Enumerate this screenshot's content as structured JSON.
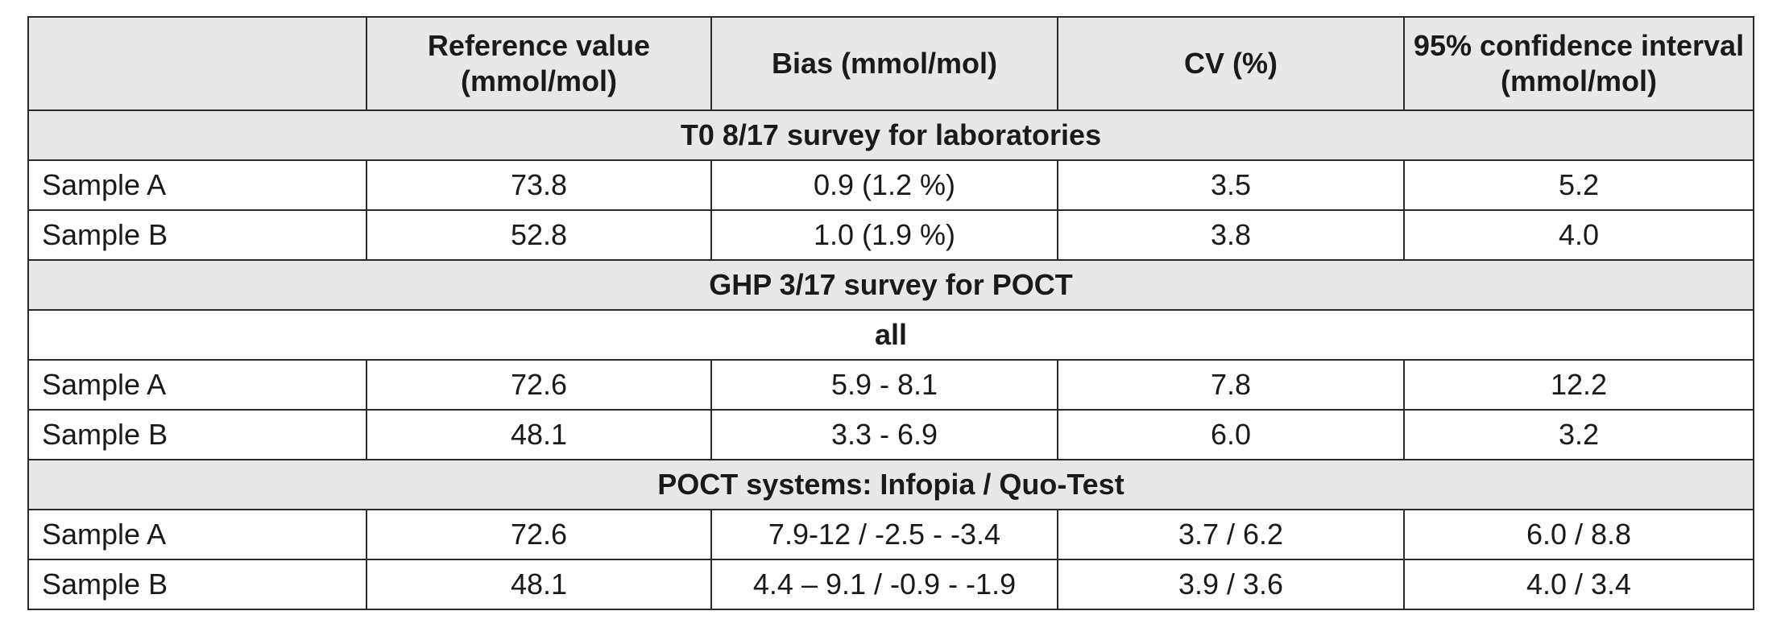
{
  "table": {
    "columns": [
      "",
      "Reference value (mmol/mol)",
      "Bias (mmol/mol)",
      "CV (%)",
      "95% confidence interval (mmol/mol)"
    ],
    "sections": [
      {
        "title": "T0 8/17 survey for laboratories",
        "subtitle": "",
        "rows": [
          [
            "Sample A",
            "73.8",
            "0.9 (1.2 %)",
            "3.5",
            "5.2"
          ],
          [
            "Sample B",
            "52.8",
            "1.0 (1.9 %)",
            "3.8",
            "4.0"
          ]
        ]
      },
      {
        "title": "GHP 3/17 survey for POCT",
        "subtitle": "all",
        "rows": [
          [
            "Sample A",
            "72.6",
            "5.9 - 8.1",
            "7.8",
            "12.2"
          ],
          [
            "Sample B",
            "48.1",
            "3.3 - 6.9",
            "6.0",
            "3.2"
          ]
        ]
      },
      {
        "title": "POCT systems: Infopia / Quo-Test",
        "subtitle": "",
        "rows": [
          [
            "Sample A",
            "72.6",
            "7.9-12 / -2.5 - -3.4",
            "3.7 / 6.2",
            "6.0 / 8.8"
          ],
          [
            "Sample B",
            "48.1",
            "4.4 – 9.1 / -0.9 - -1.9",
            "3.9 / 3.6",
            "4.0 / 3.4"
          ]
        ]
      }
    ]
  }
}
